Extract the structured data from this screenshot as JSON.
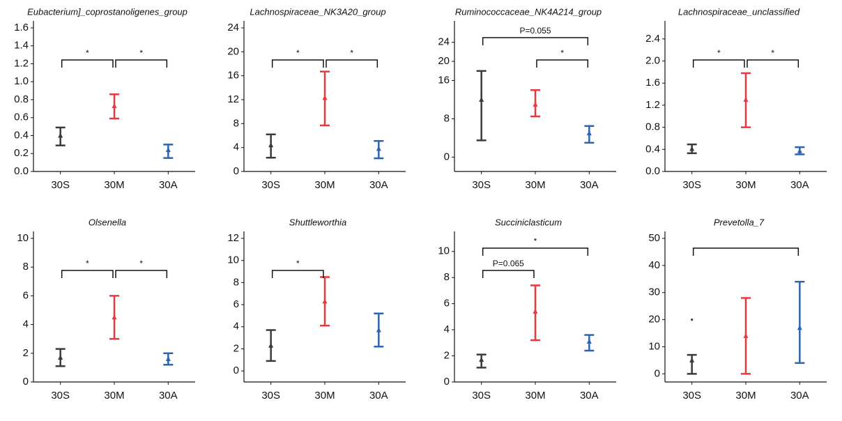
{
  "chart_data": [
    {
      "type": "errorbar",
      "title": "Eubacterium]_coprostanoligenes_group",
      "categories": [
        "30S",
        "30M",
        "30A"
      ],
      "colors": [
        "#3a3a3a",
        "#e8393f",
        "#2e63b0"
      ],
      "values": [
        0.4,
        0.73,
        0.24
      ],
      "lower": [
        0.29,
        0.59,
        0.15
      ],
      "upper": [
        0.49,
        0.86,
        0.3
      ],
      "ylim": [
        0,
        1.6
      ],
      "yticks": [
        {
          "value": 0,
          "label": "0.0"
        },
        0.2,
        0.4,
        0.6,
        0.8,
        {
          "value": 1,
          "label": "1.0"
        },
        1.2,
        1.4,
        1.6
      ],
      "brackets": [
        {
          "pair": [
            0,
            1
          ],
          "label": "*"
        },
        {
          "pair": [
            1,
            2
          ],
          "label": "*"
        }
      ]
    },
    {
      "type": "errorbar",
      "title": "Lachnospiraceae_NK3A20_group",
      "categories": [
        "30S",
        "30M",
        "30A"
      ],
      "colors": [
        "#3a3a3a",
        "#e8393f",
        "#2e63b0"
      ],
      "values": [
        4.4,
        12.3,
        3.8
      ],
      "lower": [
        2.3,
        7.7,
        2.2
      ],
      "upper": [
        6.2,
        16.7,
        5.1
      ],
      "ylim": [
        0,
        24
      ],
      "yticks": [
        0,
        4,
        8,
        12,
        16,
        20,
        24
      ],
      "brackets": [
        {
          "pair": [
            0,
            1
          ],
          "label": "*"
        },
        {
          "pair": [
            1,
            2
          ],
          "label": "*"
        }
      ]
    },
    {
      "type": "errorbar",
      "title": "Ruminococcaceae_NK4A214_group",
      "categories": [
        "30S",
        "30M",
        "30A"
      ],
      "colors": [
        "#3a3a3a",
        "#e8393f",
        "#2e63b0"
      ],
      "values": [
        12,
        11,
        5
      ],
      "lower": [
        3.5,
        8.5,
        3
      ],
      "upper": [
        18,
        14,
        6.5
      ],
      "ylim": [
        -3,
        27
      ],
      "yticks": [
        0,
        8,
        16,
        20,
        24
      ],
      "brackets": [
        {
          "pair": [
            0,
            2
          ],
          "label": "P=0.055"
        },
        {
          "pair": [
            1,
            2
          ],
          "label": "*"
        }
      ]
    },
    {
      "type": "errorbar",
      "title": "Lachnospiraceae_unclassified",
      "categories": [
        "30S",
        "30M",
        "30A"
      ],
      "colors": [
        "#3a3a3a",
        "#e8393f",
        "#2e63b0"
      ],
      "values": [
        0.41,
        1.3,
        0.37
      ],
      "lower": [
        0.33,
        0.8,
        0.31
      ],
      "upper": [
        0.49,
        1.78,
        0.44
      ],
      "ylim": [
        0,
        2.6
      ],
      "yticks": [
        {
          "value": 0,
          "label": "0.0"
        },
        0.4,
        0.8,
        1.2,
        1.6,
        {
          "value": 2,
          "label": "2.0"
        },
        2.4
      ],
      "brackets": [
        {
          "pair": [
            0,
            1
          ],
          "label": "*"
        },
        {
          "pair": [
            1,
            2
          ],
          "label": "*"
        }
      ]
    },
    {
      "type": "errorbar",
      "title": "Olsenella",
      "categories": [
        "30S",
        "30M",
        "30A"
      ],
      "colors": [
        "#3a3a3a",
        "#e8393f",
        "#2e63b0"
      ],
      "values": [
        1.7,
        4.5,
        1.6
      ],
      "lower": [
        1.1,
        3,
        1.2
      ],
      "upper": [
        2.3,
        6,
        2
      ],
      "ylim": [
        0,
        10
      ],
      "yticks": [
        0,
        2,
        4,
        6,
        8,
        10
      ],
      "brackets": [
        {
          "pair": [
            0,
            1
          ],
          "label": "*"
        },
        {
          "pair": [
            1,
            2
          ],
          "label": "*"
        }
      ]
    },
    {
      "type": "errorbar",
      "title": "Shuttleworthia",
      "categories": [
        "30S",
        "30M",
        "30A"
      ],
      "colors": [
        "#3a3a3a",
        "#e8393f",
        "#2e63b0"
      ],
      "values": [
        2.3,
        6.3,
        3.7
      ],
      "lower": [
        0.9,
        4.1,
        2.2
      ],
      "upper": [
        3.7,
        8.5,
        5.2
      ],
      "ylim": [
        -1,
        12
      ],
      "yticks": [
        0,
        2,
        4,
        6,
        8,
        10,
        12
      ],
      "brackets": [
        {
          "pair": [
            0,
            1
          ],
          "label": "*"
        }
      ]
    },
    {
      "type": "errorbar",
      "title": "Succiniclasticum",
      "categories": [
        "30S",
        "30M",
        "30A"
      ],
      "colors": [
        "#3a3a3a",
        "#e8393f",
        "#2e63b0"
      ],
      "values": [
        1.7,
        5.4,
        3.1
      ],
      "lower": [
        1.1,
        3.2,
        2.4
      ],
      "upper": [
        2.1,
        7.4,
        3.6
      ],
      "ylim": [
        0,
        11
      ],
      "yticks": [
        0,
        2,
        4,
        6,
        8,
        10
      ],
      "brackets": [
        {
          "pair": [
            0,
            2
          ],
          "label": "*"
        },
        {
          "pair": [
            0,
            1
          ],
          "label": "P=0.065"
        }
      ]
    },
    {
      "type": "errorbar",
      "title": "Prevetolla_7",
      "categories": [
        "30S",
        "30M",
        "30A"
      ],
      "colors": [
        "#3a3a3a",
        "#e8393f",
        "#2e63b0"
      ],
      "values": [
        5,
        14,
        17
      ],
      "lower": [
        0,
        0,
        4
      ],
      "upper": [
        7,
        28,
        34
      ],
      "outliers": [
        20,
        null,
        null
      ],
      "ylim": [
        -3,
        50
      ],
      "yticks": [
        0,
        10,
        20,
        30,
        40,
        50
      ],
      "brackets": [
        {
          "pair": [
            0,
            2
          ]
        }
      ]
    }
  ]
}
